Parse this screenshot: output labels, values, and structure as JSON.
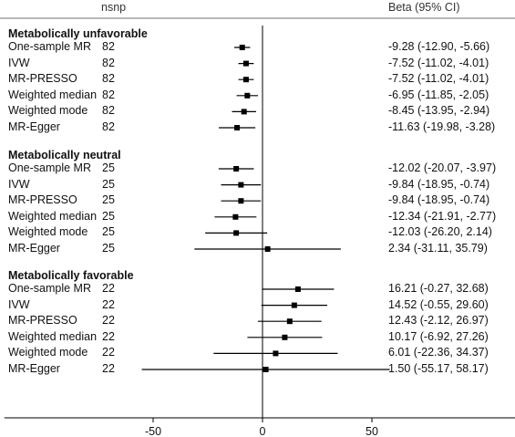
{
  "chart_data": {
    "type": "forest",
    "columns": {
      "n": "nsnp",
      "estimate": "Beta (95% CI)"
    },
    "x_ticks": [
      -50,
      0,
      50
    ],
    "xlim": [
      -118,
      118
    ],
    "reference_line": 0,
    "groups": [
      {
        "label": "Metabolically unfavorable",
        "rows": [
          {
            "method": "One-sample MR",
            "nsnp": "82",
            "beta": -9.28,
            "lo": -12.9,
            "hi": -5.66,
            "ci_text": "-9.28 (-12.90, -5.66)"
          },
          {
            "method": "IVW",
            "nsnp": "82",
            "beta": -7.52,
            "lo": -11.02,
            "hi": -4.01,
            "ci_text": "-7.52 (-11.02, -4.01)"
          },
          {
            "method": "MR-PRESSO",
            "nsnp": "82",
            "beta": -7.52,
            "lo": -11.02,
            "hi": -4.01,
            "ci_text": "-7.52 (-11.02, -4.01)"
          },
          {
            "method": "Weighted median",
            "nsnp": "82",
            "beta": -6.95,
            "lo": -11.85,
            "hi": -2.05,
            "ci_text": "-6.95 (-11.85, -2.05)"
          },
          {
            "method": "Weighted mode",
            "nsnp": "82",
            "beta": -8.45,
            "lo": -13.95,
            "hi": -2.94,
            "ci_text": "-8.45 (-13.95, -2.94)"
          },
          {
            "method": "MR-Egger",
            "nsnp": "82",
            "beta": -11.63,
            "lo": -19.98,
            "hi": -3.28,
            "ci_text": "-11.63 (-19.98, -3.28)"
          }
        ]
      },
      {
        "label": "Metabolically neutral",
        "rows": [
          {
            "method": "One-sample MR",
            "nsnp": "25",
            "beta": -12.02,
            "lo": -20.07,
            "hi": -3.97,
            "ci_text": "-12.02 (-20.07, -3.97)"
          },
          {
            "method": "IVW",
            "nsnp": "25",
            "beta": -9.84,
            "lo": -18.95,
            "hi": -0.74,
            "ci_text": "-9.84 (-18.95, -0.74)"
          },
          {
            "method": "MR-PRESSO",
            "nsnp": "25",
            "beta": -9.84,
            "lo": -18.95,
            "hi": -0.74,
            "ci_text": "-9.84 (-18.95, -0.74)"
          },
          {
            "method": "Weighted median",
            "nsnp": "25",
            "beta": -12.34,
            "lo": -21.91,
            "hi": -2.77,
            "ci_text": "-12.34 (-21.91, -2.77)"
          },
          {
            "method": "Weighted mode",
            "nsnp": "25",
            "beta": -12.03,
            "lo": -26.2,
            "hi": 2.14,
            "ci_text": "-12.03 (-26.20, 2.14)"
          },
          {
            "method": "MR-Egger",
            "nsnp": "25",
            "beta": 2.34,
            "lo": -31.11,
            "hi": 35.79,
            "ci_text": "2.34 (-31.11, 35.79)"
          }
        ]
      },
      {
        "label": "Metabolically favorable",
        "rows": [
          {
            "method": "One-sample MR",
            "nsnp": "22",
            "beta": 16.21,
            "lo": -0.27,
            "hi": 32.68,
            "ci_text": "16.21 (-0.27, 32.68)"
          },
          {
            "method": "IVW",
            "nsnp": "22",
            "beta": 14.52,
            "lo": -0.55,
            "hi": 29.6,
            "ci_text": "14.52 (-0.55, 29.60)"
          },
          {
            "method": "MR-PRESSO",
            "nsnp": "22",
            "beta": 12.43,
            "lo": -2.12,
            "hi": 26.97,
            "ci_text": "12.43 (-2.12, 26.97)"
          },
          {
            "method": "Weighted median",
            "nsnp": "22",
            "beta": 10.17,
            "lo": -6.92,
            "hi": 27.26,
            "ci_text": "10.17 (-6.92, 27.26)"
          },
          {
            "method": "Weighted mode",
            "nsnp": "22",
            "beta": 6.01,
            "lo": -22.36,
            "hi": 34.37,
            "ci_text": "6.01 (-22.36, 34.37)"
          },
          {
            "method": "MR-Egger",
            "nsnp": "22",
            "beta": 1.5,
            "lo": -55.17,
            "hi": 58.17,
            "ci_text": "1.50 (-55.17, 58.17)"
          }
        ]
      }
    ],
    "colors": {
      "marks": "#000000",
      "reference_line": "#000000",
      "axis": "#000000"
    }
  }
}
